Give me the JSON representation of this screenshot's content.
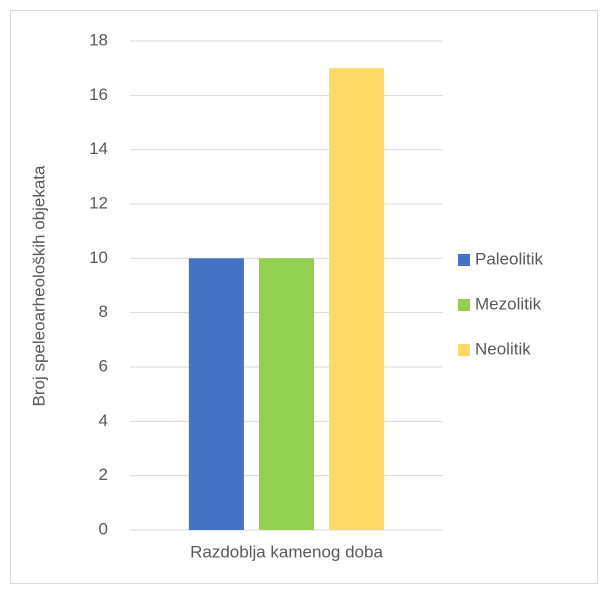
{
  "chart_data": {
    "type": "bar",
    "y_label": "Broj speleoarheoloških objekata",
    "categories": [
      "Razdoblja kamenog doba"
    ],
    "series": [
      {
        "name": "Paleolitik",
        "color": "#4472c4",
        "values": [
          10
        ]
      },
      {
        "name": "Mezolitik",
        "color": "#92d050",
        "values": [
          10
        ]
      },
      {
        "name": "Neolitik",
        "color": "#ffd966",
        "values": [
          17
        ]
      }
    ],
    "ylim": [
      0,
      18
    ],
    "yticks": [
      0,
      2,
      4,
      6,
      8,
      10,
      12,
      14,
      16,
      18
    ],
    "grid": true,
    "legend": "right"
  }
}
